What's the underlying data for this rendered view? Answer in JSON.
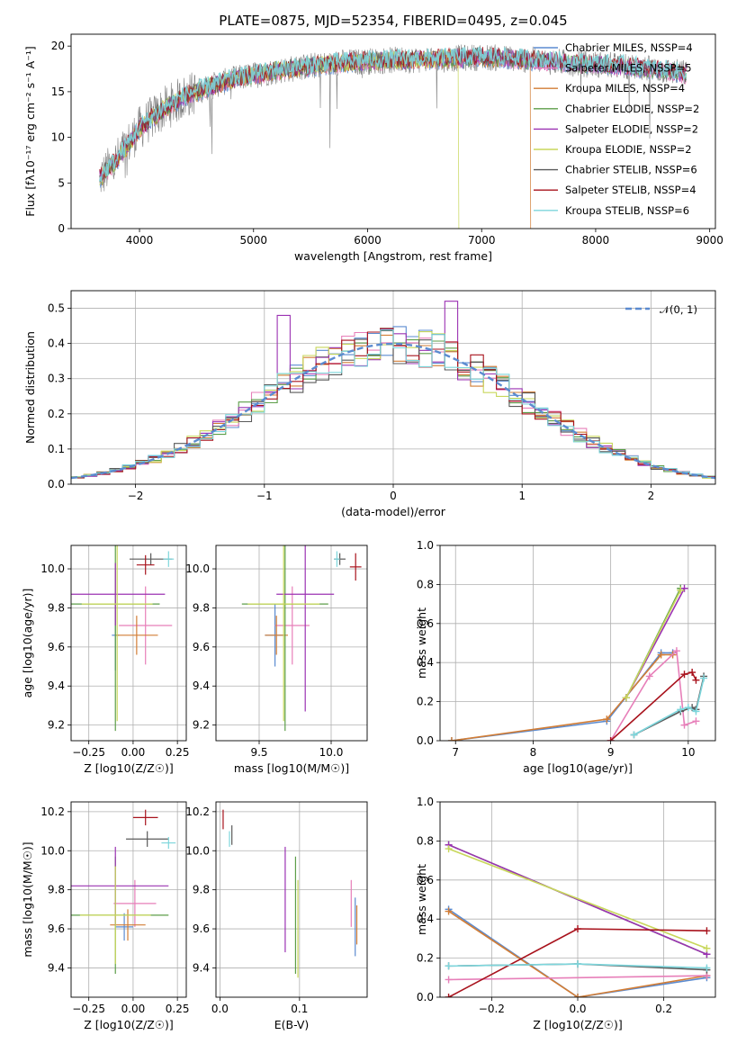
{
  "colors": {
    "chabrier_miles": "#5b8bd0",
    "salpeter_miles": "#e77fb9",
    "kroupa_miles": "#d27d35",
    "chabrier_elodie": "#5c9e48",
    "salpeter_elodie": "#9b32b3",
    "kroupa_elodie": "#c8d75b",
    "chabrier_stelib": "#5a5a5a",
    "salpeter_stelib": "#a8121c",
    "kroupa_stelib": "#7dd6dc",
    "gauss": "#5b8bd0"
  },
  "chart_data": [
    {
      "id": "spectrum",
      "type": "line",
      "title": "PLATE=0875, MJD=52354, FIBERID=0495, z=0.045",
      "xlabel": "wavelength [Angstrom, rest frame]",
      "ylabel": "Flux [fλ10⁻¹⁷ erg cm⁻² s⁻¹ A⁻¹]",
      "xlim": [
        3400,
        9050
      ],
      "ylim": [
        0,
        21.3
      ],
      "xticks": [
        "4000",
        "5000",
        "6000",
        "7000",
        "8000",
        "9000"
      ],
      "yticks": [
        "0",
        "5",
        "10",
        "15",
        "20"
      ],
      "legend_position": "right",
      "legend": [
        {
          "label": "Chabrier MILES, NSSP=4",
          "color": "chabrier_miles"
        },
        {
          "label": "Salpeter MILES, NSSP=5",
          "color": "salpeter_miles"
        },
        {
          "label": "Kroupa MILES, NSSP=4",
          "color": "kroupa_miles"
        },
        {
          "label": "Chabrier ELODIE, NSSP=2",
          "color": "chabrier_elodie"
        },
        {
          "label": "Salpeter ELODIE, NSSP=2",
          "color": "salpeter_elodie"
        },
        {
          "label": "Kroupa ELODIE, NSSP=2",
          "color": "kroupa_elodie"
        },
        {
          "label": "Chabrier STELIB, NSSP=6",
          "color": "chabrier_stelib"
        },
        {
          "label": "Salpeter STELIB, NSSP=4",
          "color": "salpeter_stelib"
        },
        {
          "label": "Kroupa STELIB, NSSP=6",
          "color": "kroupa_stelib"
        }
      ],
      "continuum": {
        "x": [
          3650,
          3800,
          4000,
          4200,
          4400,
          4600,
          4800,
          5000,
          5200,
          5500,
          5800,
          6100,
          6400,
          6700,
          7000,
          7300,
          7600,
          8000,
          8400,
          8800
        ],
        "y": [
          5.5,
          7.5,
          11.0,
          13.0,
          14.5,
          15.5,
          16.3,
          16.8,
          17.3,
          17.8,
          18.2,
          18.4,
          18.5,
          18.6,
          18.8,
          18.6,
          18.3,
          18.0,
          17.6,
          17.0
        ]
      },
      "data_end_x": 8800,
      "dropouts": [
        {
          "series": "kroupa_elodie",
          "x": 6800
        },
        {
          "series": "kroupa_miles",
          "x": 7430
        }
      ]
    },
    {
      "id": "residuals",
      "type": "area",
      "xlabel": "(data-model)/error",
      "ylabel": "Normed distribution",
      "xlim": [
        -2.5,
        2.5
      ],
      "ylim": [
        0,
        0.55
      ],
      "xticks": [
        "−2",
        "−1",
        "0",
        "1",
        "2"
      ],
      "yticks": [
        "0.0",
        "0.1",
        "0.2",
        "0.3",
        "0.4",
        "0.5"
      ],
      "gauss_label": "𝒩(0, 1)",
      "bin_width": 0.1,
      "peak_bins": [
        {
          "x": 0.5,
          "y": 0.52,
          "series": "salpeter_elodie"
        },
        {
          "x": -0.8,
          "y": 0.48,
          "series": "salpeter_elodie"
        }
      ]
    },
    {
      "id": "age_vs_z",
      "type": "scatter",
      "xlabel": "Z [log10(Z/Z☉)]",
      "ylabel": "age  [log10(age/yr)]",
      "xlim": [
        -0.35,
        0.3
      ],
      "ylim": [
        9.12,
        10.12
      ],
      "xticks": [
        "−0.25",
        "0.00",
        "0.25"
      ],
      "yticks": [
        "9.2",
        "9.4",
        "9.6",
        "9.8",
        "10.0"
      ],
      "points": [
        {
          "series": "chabrier_miles",
          "x": -0.1,
          "y": 9.66,
          "x_err": 0.02,
          "y_err": 0.18
        },
        {
          "series": "salpeter_miles",
          "x": 0.07,
          "y": 9.71,
          "x_err": 0.15,
          "y_err": 0.2
        },
        {
          "series": "kroupa_miles",
          "x": 0.02,
          "y": 9.66,
          "x_err": 0.12,
          "y_err": 0.1
        },
        {
          "series": "chabrier_elodie",
          "x": -0.1,
          "y": 9.82,
          "x_err": 0.25,
          "y_err": 0.65
        },
        {
          "series": "salpeter_elodie",
          "x": -0.1,
          "y": 9.87,
          "x_err": 0.28,
          "y_err": 0.16
        },
        {
          "series": "kroupa_elodie",
          "x": -0.09,
          "y": 9.82,
          "x_err": 0.2,
          "y_err": 0.6
        },
        {
          "series": "chabrier_stelib",
          "x": 0.1,
          "y": 10.05,
          "x_err": 0.12,
          "y_err": 0.03
        },
        {
          "series": "salpeter_stelib",
          "x": 0.07,
          "y": 10.02,
          "x_err": 0.05,
          "y_err": 0.05
        },
        {
          "series": "kroupa_stelib",
          "x": 0.2,
          "y": 10.05,
          "x_err": 0.03,
          "y_err": 0.04
        }
      ]
    },
    {
      "id": "age_vs_mass",
      "type": "scatter",
      "xlabel": "mass [log10(M/M☉)]",
      "ylabel": "",
      "xlim": [
        9.2,
        10.25
      ],
      "ylim": [
        9.12,
        10.12
      ],
      "xticks": [
        "9.5",
        "10.0"
      ],
      "yticks": [
        "9.2",
        "9.4",
        "9.6",
        "9.8",
        "10.0"
      ],
      "points": [
        {
          "series": "chabrier_miles",
          "x": 9.61,
          "y": 9.66,
          "x_err": 0.07,
          "y_err": 0.16
        },
        {
          "series": "salpeter_miles",
          "x": 9.73,
          "y": 9.71,
          "x_err": 0.12,
          "y_err": 0.2
        },
        {
          "series": "kroupa_miles",
          "x": 9.62,
          "y": 9.66,
          "x_err": 0.08,
          "y_err": 0.1
        },
        {
          "series": "chabrier_elodie",
          "x": 9.68,
          "y": 9.82,
          "x_err": 0.3,
          "y_err": 0.65
        },
        {
          "series": "salpeter_elodie",
          "x": 9.82,
          "y": 9.87,
          "x_err": 0.2,
          "y_err": 0.6
        },
        {
          "series": "kroupa_elodie",
          "x": 9.67,
          "y": 9.82,
          "x_err": 0.25,
          "y_err": 0.6
        },
        {
          "series": "chabrier_stelib",
          "x": 10.06,
          "y": 10.05,
          "x_err": 0.04,
          "y_err": 0.03
        },
        {
          "series": "salpeter_stelib",
          "x": 10.17,
          "y": 10.01,
          "x_err": 0.04,
          "y_err": 0.07
        },
        {
          "series": "kroupa_stelib",
          "x": 10.04,
          "y": 10.05,
          "x_err": 0.02,
          "y_err": 0.04
        }
      ]
    },
    {
      "id": "weight_vs_age",
      "type": "line",
      "xlabel": "age  [log10(age/yr)]",
      "ylabel": "mass weight",
      "xlim": [
        6.8,
        10.35
      ],
      "ylim": [
        0,
        1.0
      ],
      "xticks": [
        "7",
        "8",
        "9",
        "10"
      ],
      "yticks": [
        "0.0",
        "0.2",
        "0.4",
        "0.6",
        "0.8",
        "1.0"
      ],
      "series": [
        {
          "key": "chabrier_miles",
          "x": [
            6.95,
            8.95,
            9.65,
            9.8
          ],
          "y": [
            0.0,
            0.1,
            0.45,
            0.45
          ]
        },
        {
          "key": "kroupa_miles",
          "x": [
            6.95,
            8.95,
            9.65,
            9.8
          ],
          "y": [
            0.0,
            0.11,
            0.44,
            0.44
          ]
        },
        {
          "key": "salpeter_miles",
          "x": [
            9.0,
            9.5,
            9.85,
            9.95,
            10.1
          ],
          "y": [
            0.0,
            0.33,
            0.46,
            0.08,
            0.1
          ]
        },
        {
          "key": "chabrier_elodie",
          "x": [
            9.2,
            9.9
          ],
          "y": [
            0.22,
            0.78
          ]
        },
        {
          "key": "salpeter_elodie",
          "x": [
            9.2,
            9.95
          ],
          "y": [
            0.22,
            0.78
          ]
        },
        {
          "key": "kroupa_elodie",
          "x": [
            9.2,
            9.9
          ],
          "y": [
            0.22,
            0.77
          ]
        },
        {
          "key": "chabrier_stelib",
          "x": [
            9.3,
            9.9,
            10.05,
            10.1,
            10.2
          ],
          "y": [
            0.03,
            0.15,
            0.17,
            0.16,
            0.33
          ]
        },
        {
          "key": "salpeter_stelib",
          "x": [
            9.0,
            9.95,
            10.05,
            10.1
          ],
          "y": [
            0.0,
            0.34,
            0.35,
            0.31
          ]
        },
        {
          "key": "kroupa_stelib",
          "x": [
            9.3,
            9.9,
            10.0,
            10.1,
            10.2
          ],
          "y": [
            0.03,
            0.16,
            0.17,
            0.15,
            0.32
          ]
        }
      ]
    },
    {
      "id": "mass_vs_z",
      "type": "scatter",
      "xlabel": "Z [log10(Z/Z☉)]",
      "ylabel": "mass [log10(M/M☉)]",
      "xlim": [
        -0.35,
        0.3
      ],
      "ylim": [
        9.25,
        10.25
      ],
      "xticks": [
        "−0.25",
        "0.00",
        "0.25"
      ],
      "yticks": [
        "9.4",
        "9.6",
        "9.8",
        "10.0",
        "10.2"
      ],
      "points": [
        {
          "series": "chabrier_miles",
          "x": -0.05,
          "y": 9.61,
          "x_err": 0.05,
          "y_err": 0.07
        },
        {
          "series": "salpeter_miles",
          "x": 0.01,
          "y": 9.73,
          "x_err": 0.12,
          "y_err": 0.12
        },
        {
          "series": "kroupa_miles",
          "x": -0.03,
          "y": 9.62,
          "x_err": 0.1,
          "y_err": 0.08
        },
        {
          "series": "chabrier_elodie",
          "x": -0.1,
          "y": 9.67,
          "x_err": 0.3,
          "y_err": 0.3
        },
        {
          "series": "salpeter_elodie",
          "x": -0.1,
          "y": 9.82,
          "x_err": 0.3,
          "y_err": 0.2
        },
        {
          "series": "kroupa_elodie",
          "x": -0.1,
          "y": 9.67,
          "x_err": 0.2,
          "y_err": 0.25
        },
        {
          "series": "chabrier_stelib",
          "x": 0.08,
          "y": 10.06,
          "x_err": 0.12,
          "y_err": 0.04
        },
        {
          "series": "salpeter_stelib",
          "x": 0.07,
          "y": 10.17,
          "x_err": 0.07,
          "y_err": 0.04
        },
        {
          "series": "kroupa_stelib",
          "x": 0.2,
          "y": 10.04,
          "x_err": 0.04,
          "y_err": 0.03
        }
      ]
    },
    {
      "id": "mass_vs_ebv",
      "type": "scatter",
      "xlabel": "E(B-V)",
      "ylabel": "",
      "xlim": [
        -0.005,
        0.185
      ],
      "ylim": [
        9.25,
        10.25
      ],
      "xticks": [
        "0.0",
        "0.1"
      ],
      "yticks": [
        "9.4",
        "9.6",
        "9.8",
        "10.0",
        "10.2"
      ],
      "points": [
        {
          "series": "chabrier_miles",
          "x": 0.17,
          "y": 9.61,
          "y_err": 0.15
        },
        {
          "series": "salpeter_miles",
          "x": 0.165,
          "y": 9.73,
          "y_err": 0.12
        },
        {
          "series": "kroupa_miles",
          "x": 0.172,
          "y": 9.62,
          "y_err": 0.1
        },
        {
          "series": "chabrier_elodie",
          "x": 0.095,
          "y": 9.67,
          "y_err": 0.3
        },
        {
          "series": "salpeter_elodie",
          "x": 0.082,
          "y": 9.75,
          "y_err": 0.27
        },
        {
          "series": "kroupa_elodie",
          "x": 0.098,
          "y": 9.6,
          "y_err": 0.25
        },
        {
          "series": "chabrier_stelib",
          "x": 0.015,
          "y": 10.08,
          "y_err": 0.05
        },
        {
          "series": "salpeter_stelib",
          "x": 0.004,
          "y": 10.16,
          "y_err": 0.05
        },
        {
          "series": "kroupa_stelib",
          "x": 0.012,
          "y": 10.06,
          "y_err": 0.04
        }
      ]
    },
    {
      "id": "weight_vs_z",
      "type": "line",
      "xlabel": "Z [log10(Z/Z☉)]",
      "ylabel": "mass weight",
      "xlim": [
        -0.32,
        0.32
      ],
      "ylim": [
        0,
        1.0
      ],
      "xticks": [
        "−0.2",
        "0.0",
        "0.2"
      ],
      "yticks": [
        "0.0",
        "0.2",
        "0.4",
        "0.6",
        "0.8",
        "1.0"
      ],
      "series": [
        {
          "key": "chabrier_elodie",
          "x": [
            -0.3,
            0.3
          ],
          "y": [
            0.78,
            0.22
          ]
        },
        {
          "key": "salpeter_elodie",
          "x": [
            -0.3,
            0.3
          ],
          "y": [
            0.78,
            0.22
          ]
        },
        {
          "key": "kroupa_elodie",
          "x": [
            -0.3,
            0.3
          ],
          "y": [
            0.76,
            0.25
          ]
        },
        {
          "key": "chabrier_miles",
          "x": [
            -0.3,
            0.0,
            0.3
          ],
          "y": [
            0.45,
            0.0,
            0.1
          ]
        },
        {
          "key": "kroupa_miles",
          "x": [
            -0.3,
            0.0,
            0.3
          ],
          "y": [
            0.44,
            0.0,
            0.11
          ]
        },
        {
          "key": "salpeter_miles",
          "x": [
            -0.3,
            0.3
          ],
          "y": [
            0.09,
            0.11
          ]
        },
        {
          "key": "salpeter_stelib",
          "x": [
            -0.3,
            0.0,
            0.3
          ],
          "y": [
            0.0,
            0.35,
            0.34
          ]
        },
        {
          "key": "chabrier_stelib",
          "x": [
            -0.3,
            0.0,
            0.3
          ],
          "y": [
            0.16,
            0.17,
            0.14
          ]
        },
        {
          "key": "kroupa_stelib",
          "x": [
            -0.3,
            0.0,
            0.3
          ],
          "y": [
            0.16,
            0.17,
            0.15
          ]
        }
      ]
    }
  ]
}
